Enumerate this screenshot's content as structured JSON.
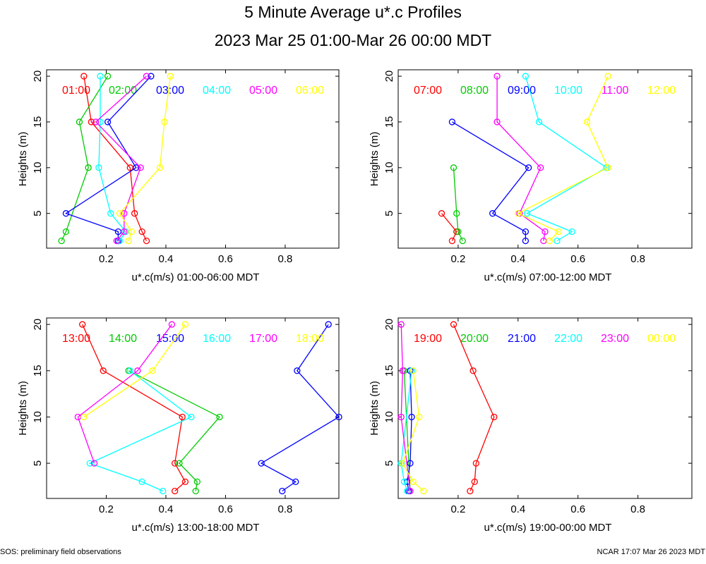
{
  "title": "5 Minute Average u*.c Profiles",
  "subtitle": "2023 Mar 25 01:00-Mar 26 00:00 MDT",
  "footer_left": "SOS: preliminary field observations",
  "footer_right": "NCAR 17:07 Mar 26 2023 MDT",
  "chart_data": [
    {
      "type": "line",
      "xlabel": "u*.c(m/s) 01:00-06:00 MDT",
      "ylabel": "Heights (m)",
      "xlim": [
        0,
        0.98
      ],
      "ylim": [
        1.2,
        20.7
      ],
      "xticks": [
        0.2,
        0.4,
        0.6,
        0.8
      ],
      "yticks": [
        5,
        10,
        15,
        20
      ],
      "heights": [
        2,
        3,
        5,
        10,
        15,
        20
      ],
      "series": [
        {
          "name": "01:00",
          "color": "#ff0000",
          "values": [
            0.335,
            0.32,
            0.295,
            0.28,
            0.15,
            0.125
          ]
        },
        {
          "name": "02:00",
          "color": "#00cc00",
          "values": [
            0.05,
            0.065,
            null,
            0.14,
            0.11,
            0.205
          ]
        },
        {
          "name": "03:00",
          "color": "#0000ff",
          "values": [
            0.24,
            0.24,
            0.065,
            0.3,
            0.205,
            0.35
          ]
        },
        {
          "name": "04:00",
          "color": "#00ffff",
          "values": [
            0.245,
            0.265,
            0.215,
            0.175,
            0.18,
            0.18
          ]
        },
        {
          "name": "05:00",
          "color": "#ff00ff",
          "values": [
            0.235,
            0.26,
            0.26,
            0.315,
            0.165,
            0.335
          ]
        },
        {
          "name": "06:00",
          "color": "#ffff00",
          "values": [
            0.275,
            0.285,
            0.245,
            0.38,
            0.395,
            0.415
          ]
        }
      ]
    },
    {
      "type": "line",
      "xlabel": "u*.c(m/s) 07:00-12:00 MDT",
      "ylabel": "Heights (m)",
      "xlim": [
        0,
        0.98
      ],
      "ylim": [
        1.2,
        20.7
      ],
      "xticks": [
        0.2,
        0.4,
        0.6,
        0.8
      ],
      "yticks": [
        5,
        10,
        15,
        20
      ],
      "heights": [
        2,
        3,
        5,
        10,
        15,
        20
      ],
      "series": [
        {
          "name": "07:00",
          "color": "#ff0000",
          "values": [
            0.18,
            0.195,
            0.145,
            null,
            null,
            null
          ]
        },
        {
          "name": "08:00",
          "color": "#00cc00",
          "values": [
            0.215,
            0.2,
            0.195,
            0.185,
            null,
            null
          ]
        },
        {
          "name": "09:00",
          "color": "#0000ff",
          "values": [
            0.425,
            0.425,
            0.315,
            0.435,
            0.18,
            null
          ]
        },
        {
          "name": "10:00",
          "color": "#00ffff",
          "values": [
            0.53,
            0.58,
            0.43,
            0.695,
            0.47,
            0.425
          ]
        },
        {
          "name": "11:00",
          "color": "#ff00ff",
          "values": [
            0.485,
            0.49,
            0.405,
            0.475,
            0.33,
            0.33
          ]
        },
        {
          "name": "12:00",
          "color": "#ffff00",
          "values": [
            0.505,
            0.535,
            0.4,
            0.7,
            0.63,
            0.7
          ]
        }
      ]
    },
    {
      "type": "line",
      "xlabel": "u*.c(m/s) 13:00-18:00 MDT",
      "ylabel": "Heights (m)",
      "xlim": [
        0,
        0.98
      ],
      "ylim": [
        1.2,
        20.7
      ],
      "xticks": [
        0.2,
        0.4,
        0.6,
        0.8
      ],
      "yticks": [
        5,
        10,
        15,
        20
      ],
      "heights": [
        2,
        3,
        5,
        10,
        15,
        20
      ],
      "series": [
        {
          "name": "13:00",
          "color": "#ff0000",
          "values": [
            0.43,
            0.465,
            0.43,
            0.455,
            0.19,
            0.12
          ]
        },
        {
          "name": "14:00",
          "color": "#00cc00",
          "values": [
            0.5,
            0.505,
            0.445,
            0.58,
            0.275,
            null
          ]
        },
        {
          "name": "15:00",
          "color": "#0000ff",
          "values": [
            0.79,
            0.835,
            0.72,
            0.98,
            0.84,
            0.945
          ]
        },
        {
          "name": "16:00",
          "color": "#00ffff",
          "values": [
            0.39,
            0.32,
            0.145,
            0.485,
            0.28,
            null
          ]
        },
        {
          "name": "17:00",
          "color": "#ff00ff",
          "values": [
            null,
            null,
            0.16,
            0.105,
            0.305,
            0.42
          ]
        },
        {
          "name": "18:00",
          "color": "#ffff00",
          "values": [
            null,
            null,
            null,
            0.125,
            0.355,
            0.465
          ]
        }
      ]
    },
    {
      "type": "line",
      "xlabel": "u*.c(m/s) 19:00-00:00 MDT",
      "ylabel": "Heights (m)",
      "xlim": [
        0,
        0.98
      ],
      "ylim": [
        1.2,
        20.7
      ],
      "xticks": [
        0.2,
        0.4,
        0.6,
        0.8
      ],
      "yticks": [
        5,
        10,
        15,
        20
      ],
      "heights": [
        2,
        3,
        5,
        10,
        15,
        20
      ],
      "series": [
        {
          "name": "19:00",
          "color": "#ff0000",
          "values": [
            0.24,
            0.255,
            0.26,
            0.32,
            0.25,
            0.185
          ]
        },
        {
          "name": "20:00",
          "color": "#00cc00",
          "values": [
            0.04,
            null,
            null,
            null,
            0.02,
            null
          ]
        },
        {
          "name": "21:00",
          "color": "#0000ff",
          "values": [
            0.035,
            0.03,
            0.04,
            0.045,
            0.04,
            null
          ]
        },
        {
          "name": "22:00",
          "color": "#00ffff",
          "values": [
            0.03,
            0.02,
            0.01,
            null,
            0.045,
            null
          ]
        },
        {
          "name": "23:00",
          "color": "#ff00ff",
          "values": [
            0.04,
            null,
            null,
            0.01,
            0.015,
            0.01
          ]
        },
        {
          "name": "00:00",
          "color": "#ffff00",
          "values": [
            0.085,
            0.05,
            0.015,
            0.07,
            0.05,
            null
          ]
        }
      ]
    }
  ]
}
